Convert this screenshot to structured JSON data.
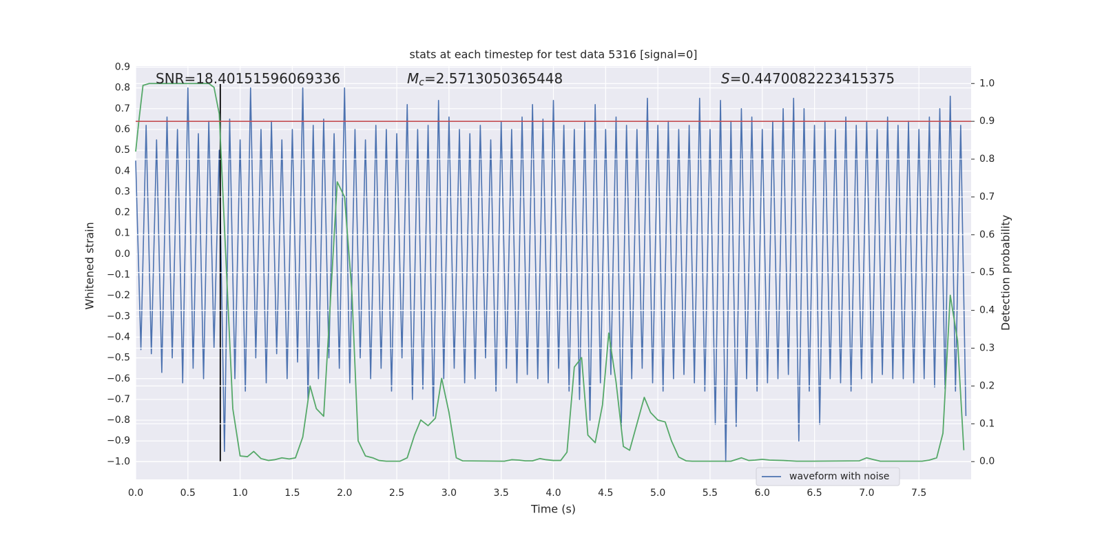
{
  "chart_data": {
    "type": "line",
    "title": "stats at each timestep for test data 5316 [signal=0]",
    "xlabel": "Time (s)",
    "ylabel": "Whitened strain",
    "y2label": "Detection probability",
    "annotations": [
      {
        "text": "SNR=18.40151596069336"
      },
      {
        "symbol": "M",
        "subscript": "c",
        "text": "=2.5713050365448"
      },
      {
        "symbol": "S",
        "text": "=0.4470082223415375"
      }
    ],
    "xlim": [
      0,
      8
    ],
    "ylim": [
      -1.085,
      0.905
    ],
    "y2lim": [
      -0.047,
      1.046
    ],
    "xticks": [
      {
        "value": 0,
        "label": "0.0"
      },
      {
        "value": 0.5,
        "label": "0.5"
      },
      {
        "value": 1,
        "label": "1.0"
      },
      {
        "value": 1.5,
        "label": "1.5"
      },
      {
        "value": 2,
        "label": "2.0"
      },
      {
        "value": 2.5,
        "label": "2.5"
      },
      {
        "value": 3,
        "label": "3.0"
      },
      {
        "value": 3.5,
        "label": "3.5"
      },
      {
        "value": 4,
        "label": "4.0"
      },
      {
        "value": 4.5,
        "label": "4.5"
      },
      {
        "value": 5,
        "label": "5.0"
      },
      {
        "value": 5.5,
        "label": "5.5"
      },
      {
        "value": 6,
        "label": "6.0"
      },
      {
        "value": 6.5,
        "label": "6.5"
      },
      {
        "value": 7,
        "label": "7.0"
      },
      {
        "value": 7.5,
        "label": "7.5"
      }
    ],
    "yticks": [
      {
        "value": -1,
        "label": "−1.0"
      },
      {
        "value": -0.9,
        "label": "−0.9"
      },
      {
        "value": -0.8,
        "label": "−0.8"
      },
      {
        "value": -0.7,
        "label": "−0.7"
      },
      {
        "value": -0.6,
        "label": "−0.6"
      },
      {
        "value": -0.5,
        "label": "−0.5"
      },
      {
        "value": -0.4,
        "label": "−0.4"
      },
      {
        "value": -0.3,
        "label": "−0.3"
      },
      {
        "value": -0.2,
        "label": "−0.2"
      },
      {
        "value": -0.1,
        "label": "−0.1"
      },
      {
        "value": 0,
        "label": "0.0"
      },
      {
        "value": 0.1,
        "label": "0.1"
      },
      {
        "value": 0.2,
        "label": "0.2"
      },
      {
        "value": 0.3,
        "label": "0.3"
      },
      {
        "value": 0.4,
        "label": "0.4"
      },
      {
        "value": 0.5,
        "label": "0.5"
      },
      {
        "value": 0.6,
        "label": "0.6"
      },
      {
        "value": 0.7,
        "label": "0.7"
      },
      {
        "value": 0.8,
        "label": "0.8"
      },
      {
        "value": 0.9,
        "label": "0.9"
      }
    ],
    "y2ticks": [
      {
        "value": 0,
        "label": "0.0"
      },
      {
        "value": 0.1,
        "label": "0.1"
      },
      {
        "value": 0.2,
        "label": "0.2"
      },
      {
        "value": 0.3,
        "label": "0.3"
      },
      {
        "value": 0.4,
        "label": "0.4"
      },
      {
        "value": 0.5,
        "label": "0.5"
      },
      {
        "value": 0.6,
        "label": "0.6"
      },
      {
        "value": 0.7,
        "label": "0.7"
      },
      {
        "value": 0.8,
        "label": "0.8"
      },
      {
        "value": 0.9,
        "label": "0.9"
      },
      {
        "value": 1,
        "label": "1.0"
      }
    ],
    "grid": true,
    "legend": "lower right",
    "series": [
      {
        "name": "waveform with noise",
        "color": "#4c72b0",
        "x": [
          0,
          0.05,
          0.1,
          0.15,
          0.2,
          0.25,
          0.3,
          0.35,
          0.4,
          0.45,
          0.5,
          0.55,
          0.6,
          0.65,
          0.7,
          0.75,
          0.8,
          0.85,
          0.9,
          0.95,
          1,
          1.05,
          1.1,
          1.15,
          1.2,
          1.25,
          1.3,
          1.35,
          1.4,
          1.45,
          1.5,
          1.55,
          1.6,
          1.65,
          1.7,
          1.75,
          1.8,
          1.85,
          1.9,
          1.95,
          2,
          2.05,
          2.1,
          2.15,
          2.2,
          2.25,
          2.3,
          2.35,
          2.4,
          2.45,
          2.5,
          2.55,
          2.6,
          2.65,
          2.7,
          2.75,
          2.8,
          2.85,
          2.9,
          2.95,
          3,
          3.05,
          3.1,
          3.15,
          3.2,
          3.25,
          3.3,
          3.35,
          3.4,
          3.45,
          3.5,
          3.55,
          3.6,
          3.65,
          3.7,
          3.75,
          3.8,
          3.85,
          3.9,
          3.95,
          4,
          4.05,
          4.1,
          4.15,
          4.2,
          4.25,
          4.3,
          4.35,
          4.4,
          4.45,
          4.5,
          4.55,
          4.6,
          4.65,
          4.7,
          4.75,
          4.8,
          4.85,
          4.9,
          4.95,
          5,
          5.05,
          5.1,
          5.15,
          5.2,
          5.25,
          5.3,
          5.35,
          5.4,
          5.45,
          5.5,
          5.55,
          5.6,
          5.65,
          5.7,
          5.75,
          5.8,
          5.85,
          5.9,
          5.95,
          6,
          6.05,
          6.1,
          6.15,
          6.2,
          6.25,
          6.3,
          6.35,
          6.4,
          6.45,
          6.5,
          6.55,
          6.6,
          6.65,
          6.7,
          6.75,
          6.8,
          6.85,
          6.9,
          6.95,
          7,
          7.05,
          7.1,
          7.15,
          7.2,
          7.25,
          7.3,
          7.35,
          7.4,
          7.45,
          7.5,
          7.55,
          7.6,
          7.65,
          7.7,
          7.75,
          7.8,
          7.85,
          7.9,
          7.95
        ],
        "values": [
          0.45,
          -0.46,
          0.62,
          -0.48,
          0.55,
          -0.57,
          0.66,
          -0.5,
          0.6,
          -0.62,
          0.8,
          -0.55,
          0.58,
          -0.6,
          0.64,
          -0.45,
          0.5,
          -0.95,
          0.65,
          -0.6,
          0.55,
          -0.66,
          0.8,
          -0.5,
          0.6,
          -0.62,
          0.64,
          -0.48,
          0.55,
          -0.6,
          0.6,
          -0.52,
          0.8,
          -0.7,
          0.62,
          -0.6,
          0.65,
          -0.5,
          0.58,
          -0.55,
          0.8,
          -0.62,
          0.6,
          -0.5,
          0.55,
          -0.6,
          0.62,
          -0.55,
          0.6,
          -0.66,
          0.58,
          -0.5,
          0.72,
          -0.7,
          0.6,
          -0.65,
          0.62,
          -0.78,
          0.74,
          -0.6,
          0.66,
          -0.55,
          0.6,
          -0.62,
          0.58,
          -0.6,
          0.62,
          -0.5,
          0.55,
          -0.66,
          0.64,
          -0.55,
          0.6,
          -0.62,
          0.66,
          -0.58,
          0.72,
          -0.6,
          0.65,
          -0.62,
          0.74,
          -0.55,
          0.62,
          -0.66,
          0.6,
          -0.7,
          0.64,
          -0.8,
          0.72,
          -0.62,
          0.6,
          -0.58,
          0.66,
          -0.83,
          0.62,
          -0.6,
          0.6,
          -0.55,
          0.75,
          -0.62,
          0.62,
          -0.66,
          0.64,
          -0.6,
          0.6,
          -0.58,
          0.62,
          -0.62,
          0.75,
          -0.66,
          0.6,
          -0.82,
          0.74,
          -1.0,
          0.64,
          -0.83,
          0.7,
          -0.6,
          0.66,
          -0.66,
          0.6,
          -0.62,
          0.64,
          -0.6,
          0.7,
          -0.58,
          0.75,
          -0.9,
          0.7,
          -0.66,
          0.62,
          -0.82,
          0.64,
          -0.6,
          0.6,
          -0.62,
          0.66,
          -0.66,
          0.62,
          -0.6,
          0.64,
          -0.62,
          0.6,
          -0.58,
          0.66,
          -0.6,
          0.62,
          -0.6,
          0.64,
          -0.62,
          0.6,
          -0.6,
          0.66,
          -0.64,
          0.7,
          -0.65,
          0.76,
          -0.66,
          0.62,
          -0.78
        ]
      },
      {
        "color": "#55a868",
        "axis": "y2",
        "x": [
          0,
          0.03,
          0.07,
          0.13,
          0.3,
          0.5,
          0.7,
          0.75,
          0.8,
          0.87,
          0.93,
          1,
          1.07,
          1.13,
          1.2,
          1.27,
          1.33,
          1.4,
          1.47,
          1.53,
          1.6,
          1.67,
          1.73,
          1.8,
          1.87,
          1.93,
          2,
          2.07,
          2.13,
          2.2,
          2.27,
          2.33,
          2.4,
          2.53,
          2.6,
          2.67,
          2.73,
          2.8,
          2.87,
          2.93,
          3,
          3.07,
          3.13,
          3.53,
          3.6,
          3.67,
          3.73,
          3.8,
          3.87,
          3.93,
          4,
          4.07,
          4.13,
          4.2,
          4.27,
          4.33,
          4.4,
          4.47,
          4.53,
          4.6,
          4.67,
          4.73,
          4.8,
          4.87,
          4.93,
          5,
          5.07,
          5.13,
          5.2,
          5.27,
          5.33,
          5.7,
          5.8,
          5.87,
          5.93,
          6,
          6.07,
          6.2,
          6.33,
          6.47,
          6.93,
          7,
          7.07,
          7.13,
          7.53,
          7.6,
          7.67,
          7.73,
          7.8,
          7.87,
          7.93
        ],
        "values": [
          0.82,
          0.9,
          0.995,
          1.0,
          1.0,
          1.0,
          1.0,
          0.99,
          0.92,
          0.5,
          0.14,
          0.015,
          0.013,
          0.027,
          0.008,
          0.003,
          0.005,
          0.01,
          0.007,
          0.01,
          0.065,
          0.2,
          0.14,
          0.12,
          0.45,
          0.74,
          0.7,
          0.45,
          0.055,
          0.015,
          0.01,
          0.003,
          0.001,
          0.001,
          0.01,
          0.07,
          0.11,
          0.095,
          0.115,
          0.22,
          0.13,
          0.01,
          0.002,
          0.001,
          0.005,
          0.004,
          0.002,
          0.002,
          0.008,
          0.005,
          0.003,
          0.003,
          0.025,
          0.25,
          0.275,
          0.07,
          0.05,
          0.15,
          0.34,
          0.21,
          0.04,
          0.03,
          0.1,
          0.17,
          0.13,
          0.11,
          0.105,
          0.055,
          0.012,
          0.002,
          0.001,
          0.001,
          0.01,
          0.003,
          0.004,
          0.006,
          0.004,
          0.003,
          0.001,
          0.001,
          0.002,
          0.01,
          0.005,
          0.001,
          0.001,
          0.004,
          0.01,
          0.075,
          0.44,
          0.32,
          0.03
        ]
      }
    ],
    "hline": {
      "value": 0.9,
      "axis": "y2",
      "color": "#c44e52"
    },
    "vline": {
      "x": 0.81,
      "ymin": -1.0,
      "ymax": 0.82,
      "color": "#000000"
    }
  }
}
